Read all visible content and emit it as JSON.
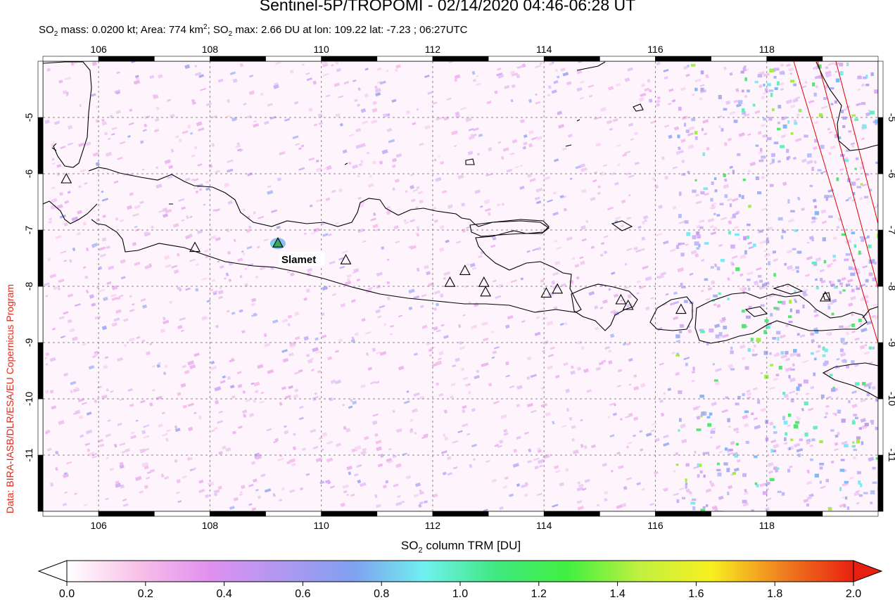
{
  "header": {
    "title": "Sentinel-5P/TROPOMI - 02/14/2020 04:46-06:28 UT",
    "stats": {
      "p1": "SO",
      "p2": " mass: 0.0200 kt; Area: 774 km",
      "p3": "; SO",
      "p4": " max: 2.66 DU at lon: 109.22 lat: -7.23 ; 06:27UTC"
    }
  },
  "credit": "Data: BIRA-IASB/DLR/ESA/EU Copernicus Program",
  "map": {
    "lon_range": [
      105.0,
      120.0
    ],
    "lat_range": [
      -12.0,
      -4.0
    ],
    "lon_ticks": [
      "106",
      "108",
      "110",
      "112",
      "114",
      "116",
      "118"
    ],
    "lat_ticks": [
      "-5",
      "-6",
      "-7",
      "-8",
      "-9",
      "-10",
      "-11"
    ],
    "gridlines": true,
    "volcano_label": "Slamet",
    "volcanoes": [
      {
        "name": "Slamet",
        "lon": 109.22,
        "lat": -7.24,
        "highlight": true
      },
      {
        "lon": 105.42,
        "lat": -6.1
      },
      {
        "lon": 107.73,
        "lat": -7.32
      },
      {
        "lon": 110.44,
        "lat": -7.54
      },
      {
        "lon": 112.31,
        "lat": -7.94
      },
      {
        "lon": 112.58,
        "lat": -7.73
      },
      {
        "lon": 112.92,
        "lat": -7.94
      },
      {
        "lon": 112.95,
        "lat": -8.11
      },
      {
        "lon": 114.04,
        "lat": -8.13
      },
      {
        "lon": 114.24,
        "lat": -8.06
      },
      {
        "lon": 115.38,
        "lat": -8.25
      },
      {
        "lon": 115.51,
        "lat": -8.35
      },
      {
        "lon": 116.46,
        "lat": -8.42
      },
      {
        "lon": 119.05,
        "lat": -8.2
      }
    ],
    "colors": {
      "land_outline": "#000000",
      "grid": "#888888",
      "swath_edge": "#e00000",
      "label_bg": "#ffffff"
    }
  },
  "colorbar": {
    "title_p1": "SO",
    "title_p2": " column TRM [DU]",
    "min": 0.0,
    "max": 2.0,
    "ticks": [
      "0.0",
      "0.2",
      "0.4",
      "0.6",
      "0.8",
      "1.0",
      "1.2",
      "1.4",
      "1.6",
      "1.8",
      "2.0"
    ],
    "stops": [
      "#ffffff",
      "#f8c0e8",
      "#e090f0",
      "#b098f0",
      "#80a0f0",
      "#70f0f0",
      "#40e880",
      "#40f040",
      "#c0f040",
      "#f8f020",
      "#f08020",
      "#e82010"
    ]
  }
}
